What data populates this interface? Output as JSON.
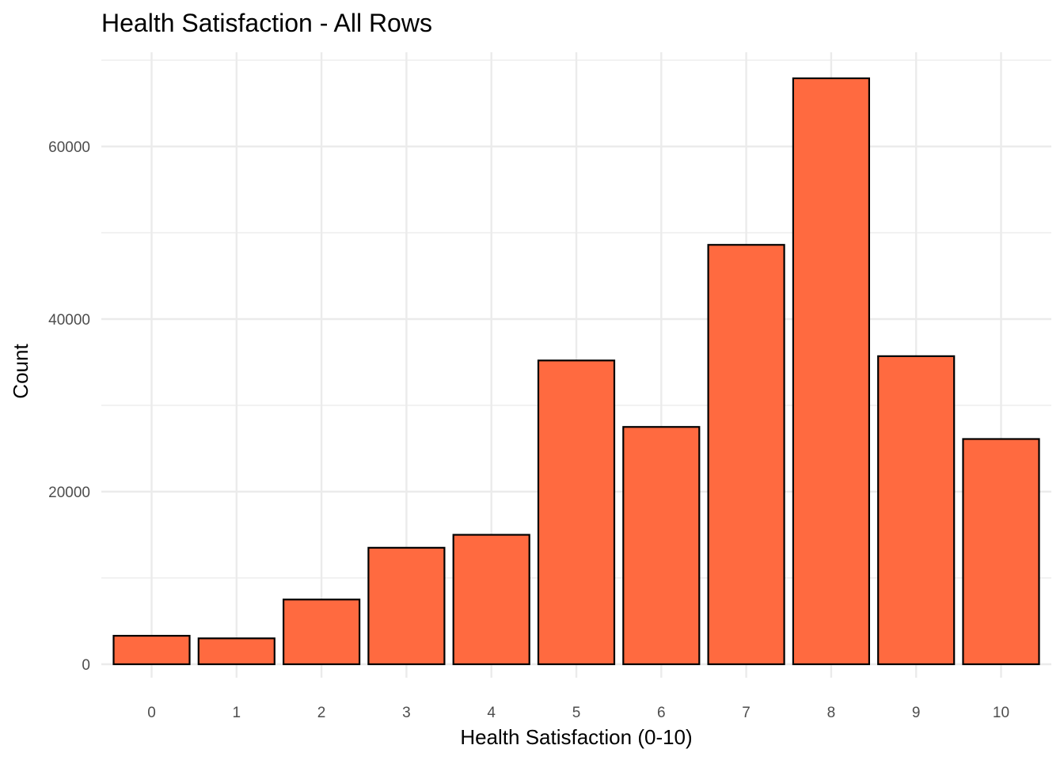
{
  "chart_data": {
    "type": "bar",
    "title": "Health Satisfaction - All Rows",
    "xlabel": "Health Satisfaction (0-10)",
    "ylabel": "Count",
    "categories": [
      "0",
      "1",
      "2",
      "3",
      "4",
      "5",
      "6",
      "7",
      "8",
      "9",
      "10"
    ],
    "values": [
      3300,
      3000,
      7500,
      13500,
      15000,
      35200,
      27500,
      48600,
      67900,
      35700,
      26100
    ],
    "ylim": [
      0,
      70000
    ],
    "yticks": [
      0,
      20000,
      40000,
      60000
    ],
    "ytick_labels": [
      "0",
      "20000",
      "40000",
      "60000"
    ],
    "y_minor_ticks": [
      10000,
      30000,
      50000,
      70000
    ],
    "grid": true,
    "legend": "none",
    "bar_color": "#FF6A40",
    "bar_edge_color": "#000000",
    "grid_color": "#EBEBEB",
    "axis_text_color": "#4D4D4D",
    "title_color": "#000000"
  }
}
